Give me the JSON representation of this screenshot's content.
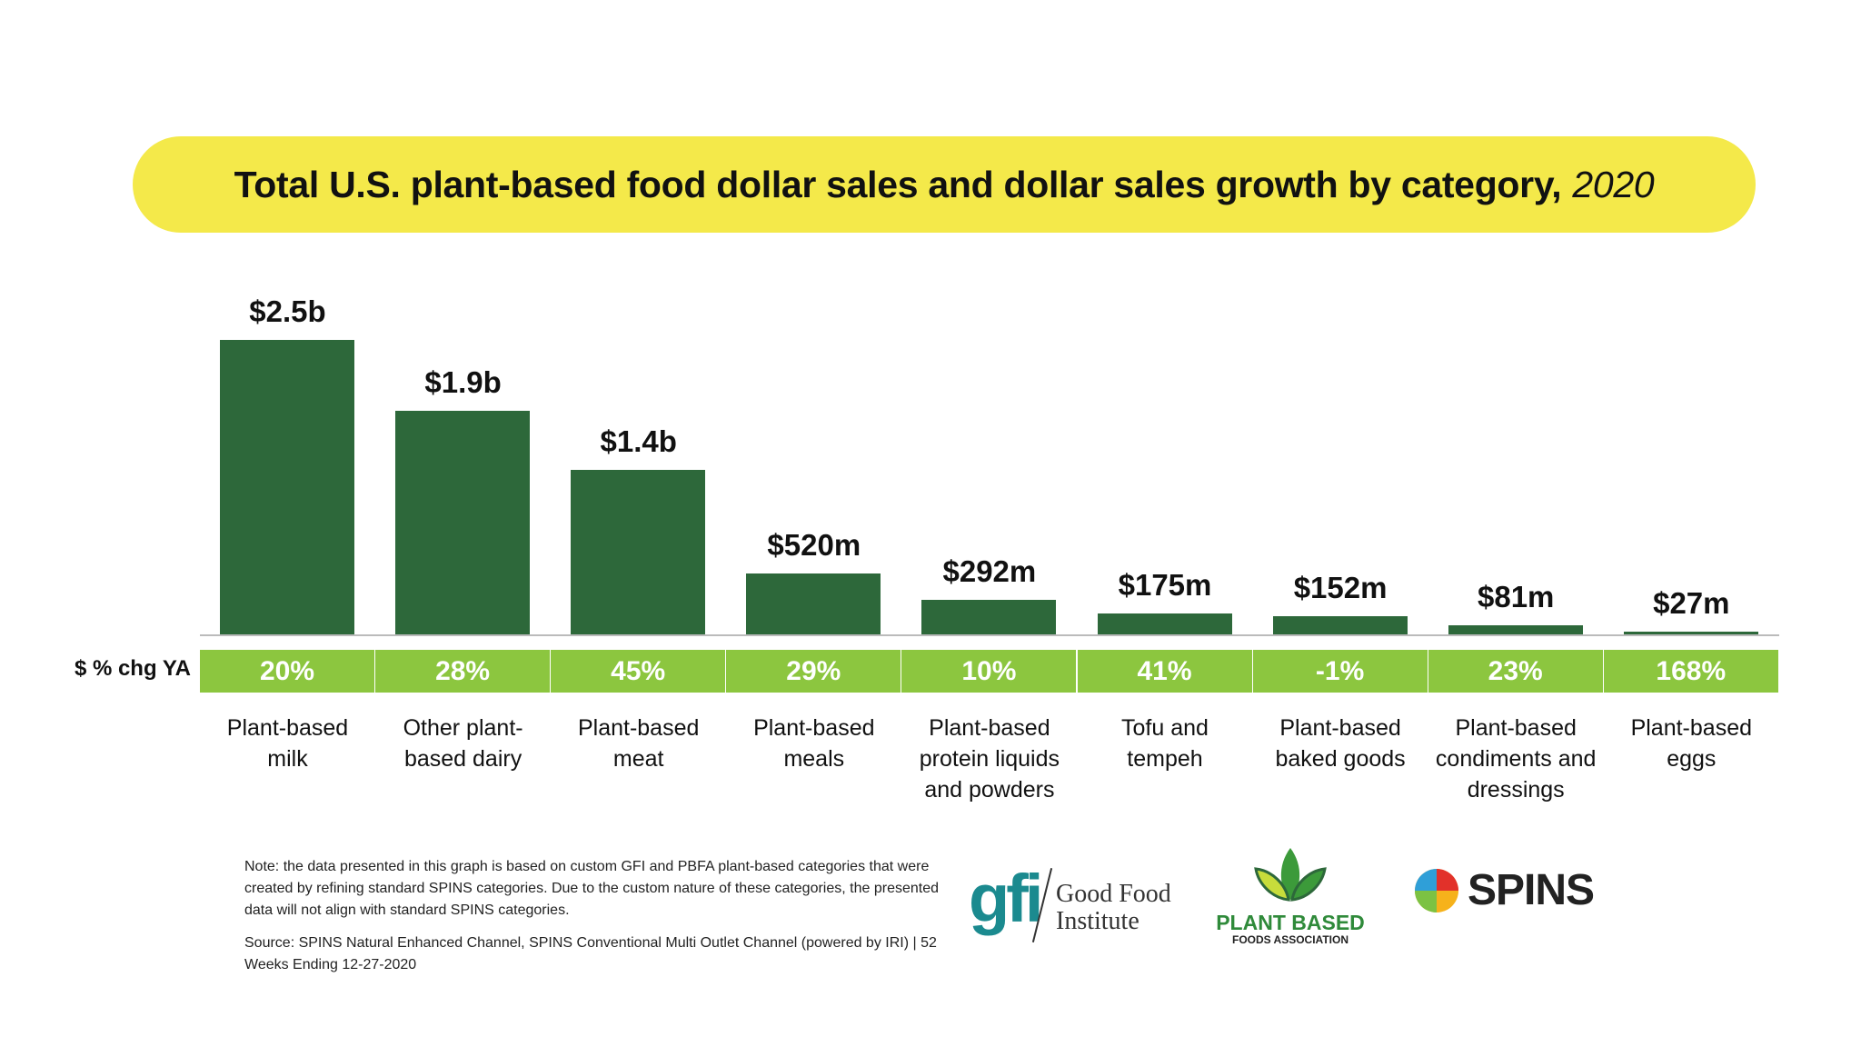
{
  "chart_data": {
    "type": "bar",
    "title": "Total U.S. plant-based food dollar sales and dollar sales growth by category,",
    "title_year": "2020",
    "categories": [
      "Plant-based\nmilk",
      "Other plant-\nbased dairy",
      "Plant-based\nmeat",
      "Plant-based\nmeals",
      "Plant-based\nprotein liquids\nand powders",
      "Tofu and\ntempeh",
      "Plant-based\nbaked goods",
      "Plant-based\ncondiments and\ndressings",
      "Plant-based\neggs"
    ],
    "values_usd_millions": [
      2500,
      1900,
      1400,
      520,
      292,
      175,
      152,
      81,
      27
    ],
    "value_labels": [
      "$2.5b",
      "$1.9b",
      "$1.4b",
      "$520m",
      "$292m",
      "$175m",
      "$152m",
      "$81m",
      "$27m"
    ],
    "growth_label": "$ % chg YA",
    "growth": [
      "20%",
      "28%",
      "45%",
      "29%",
      "10%",
      "41%",
      "-1%",
      "23%",
      "168%"
    ],
    "colors": {
      "bar": "#2d683a",
      "growth_strip": "#8cc63f",
      "title_bg": "#f4e94a"
    }
  },
  "notes": {
    "note": "Note: the data presented in this graph is based on custom GFI and PBFA plant-based categories that were created by refining standard SPINS categories. Due to the custom nature of these categories, the presented data will not align with standard SPINS categories.",
    "source": "Source: SPINS Natural Enhanced Channel, SPINS Conventional Multi Outlet Channel (powered by IRI) | 52 Weeks Ending 12-27-2020"
  },
  "logos": {
    "gfi": {
      "mark": "gfi",
      "text1": "Good Food",
      "text2": "Institute"
    },
    "pbfa": {
      "text1": "PLANT BASED",
      "text2": "FOODS ASSOCIATION"
    },
    "spins": {
      "text": "SPINS"
    }
  }
}
